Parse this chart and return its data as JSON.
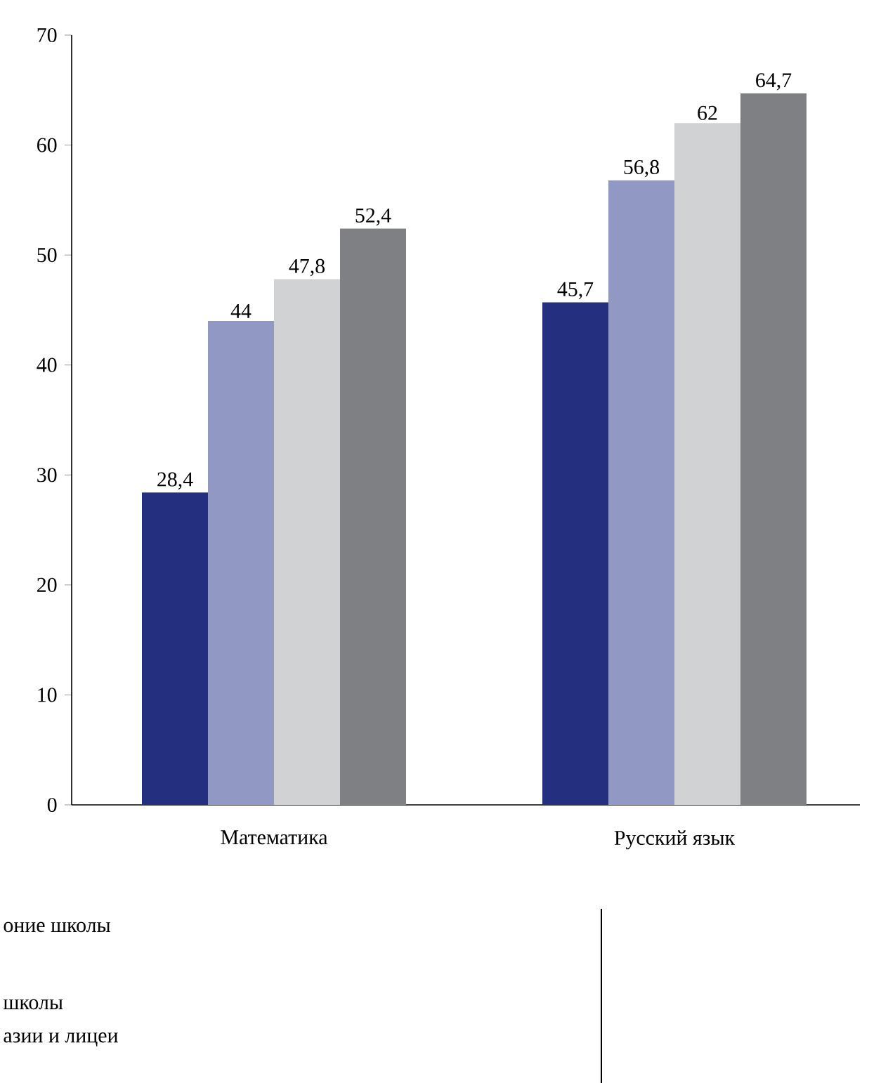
{
  "chart_data": {
    "type": "bar",
    "categories": [
      "Математика",
      "Русский язык"
    ],
    "series": [
      {
        "color": "#252f80",
        "values": [
          28.4,
          45.7
        ],
        "value_labels": [
          "28,4",
          "45,7"
        ]
      },
      {
        "color": "#9198c4",
        "values": [
          44,
          56.8
        ],
        "value_labels": [
          "44",
          "56,8"
        ]
      },
      {
        "color": "#d1d2d4",
        "values": [
          47.8,
          62
        ],
        "value_labels": [
          "47,8",
          "62"
        ]
      },
      {
        "color": "#7f8083",
        "values": [
          52.4,
          64.7
        ],
        "value_labels": [
          "52,4",
          "64,7"
        ]
      }
    ],
    "ylim": [
      0,
      70
    ],
    "yticks": [
      0,
      10,
      20,
      30,
      40,
      50,
      60,
      70
    ],
    "grid": false,
    "annotations": [
      "оние школы",
      "школы",
      "азии и лицеи"
    ]
  }
}
